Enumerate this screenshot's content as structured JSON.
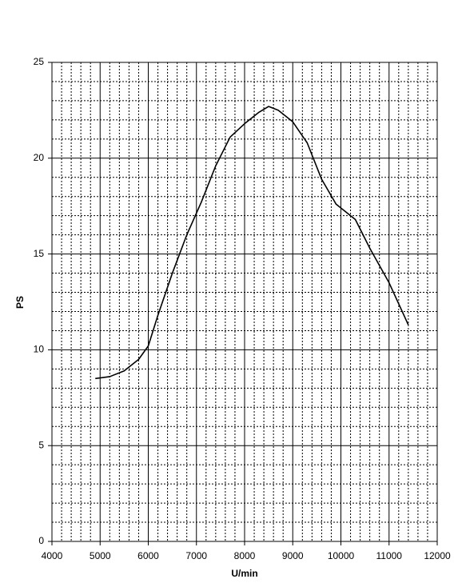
{
  "chart_data": {
    "type": "line",
    "x_label": "U/min",
    "y_label": "PS",
    "x": [
      4900,
      5200,
      5500,
      5800,
      6000,
      6200,
      6500,
      6800,
      7100,
      7400,
      7700,
      8000,
      8300,
      8500,
      8700,
      9000,
      9300,
      9600,
      9900,
      10300,
      10600,
      11000,
      11400
    ],
    "series": [
      {
        "color": "#000000",
        "values": [
          8.5,
          8.6,
          8.9,
          9.5,
          10.2,
          11.8,
          14.0,
          16.0,
          17.7,
          19.6,
          21.1,
          21.8,
          22.4,
          22.7,
          22.5,
          21.9,
          20.8,
          18.9,
          17.6,
          16.8,
          15.3,
          13.5,
          11.3
        ]
      }
    ],
    "xlim": [
      4000,
      12000
    ],
    "xticks": [
      4000,
      5000,
      6000,
      7000,
      8000,
      9000,
      10000,
      11000,
      12000
    ],
    "ylim": [
      0,
      25
    ],
    "yticks": [
      0,
      5,
      10,
      15,
      20,
      25
    ],
    "grid": true
  }
}
